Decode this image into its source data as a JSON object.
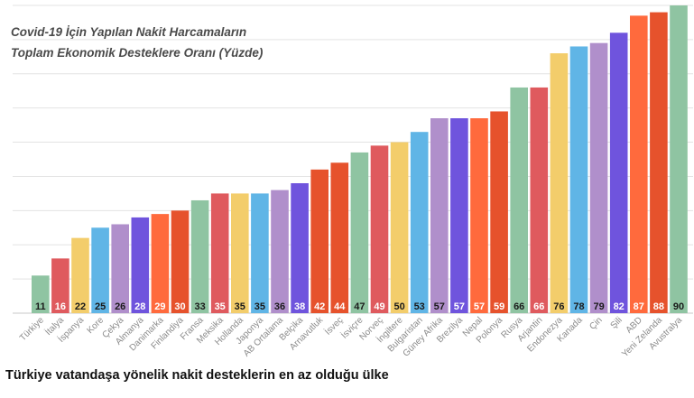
{
  "chart_data": {
    "type": "bar",
    "title_lines": [
      "Covid-19 İçin Yapılan Nakit Harcamaların",
      "Toplam Ekonomik Desteklere Oranı (Yüzde)"
    ],
    "categories": [
      "Türkiye",
      "İtalya",
      "İspanya",
      "Kore",
      "Çekya",
      "Almanya",
      "Danimarka",
      "Finlandiya",
      "Fransa",
      "Meksika",
      "Hollanda",
      "Japonya",
      "AB Ortalama",
      "Belçika",
      "Arnavutluk",
      "İsveç",
      "İsviçre",
      "Norveç",
      "İngiltere",
      "Bulgaristan",
      "Güney Afrika",
      "Brezilya",
      "Nepal",
      "Polonya",
      "Rusya",
      "Arjantin",
      "Endonezya",
      "Kanada",
      "Çin",
      "Şili",
      "ABD",
      "Yeni Zelanda",
      "Avustralya"
    ],
    "values": [
      11,
      16,
      22,
      25,
      26,
      28,
      29,
      30,
      33,
      35,
      35,
      35,
      36,
      38,
      42,
      44,
      47,
      49,
      50,
      53,
      57,
      57,
      57,
      59,
      66,
      66,
      76,
      78,
      79,
      82,
      87,
      88,
      90
    ],
    "colors": [
      "#8fc4a2",
      "#df5a5e",
      "#f3cd6b",
      "#60b5e6",
      "#b08fcb",
      "#6f54dd",
      "#ff6a3d",
      "#e6522c",
      "#8fc4a2",
      "#df5a5e",
      "#f3cd6b",
      "#60b5e6",
      "#b08fcb",
      "#6f54dd",
      "#e6522c",
      "#e6522c",
      "#8fc4a2",
      "#df5a5e",
      "#f3cd6b",
      "#60b5e6",
      "#b08fcb",
      "#6f54dd",
      "#ff6a3d",
      "#e6522c",
      "#8fc4a2",
      "#df5a5e",
      "#f3cd6b",
      "#60b5e6",
      "#b08fcb",
      "#6f54dd",
      "#ff6a3d",
      "#e6522c",
      "#8fc4a2"
    ],
    "ylim": [
      0,
      90
    ],
    "grid": true,
    "xlabel": "",
    "ylabel": ""
  },
  "caption": "Türkiye vatandaşa yönelik nakit desteklerin en az olduğu ülke"
}
